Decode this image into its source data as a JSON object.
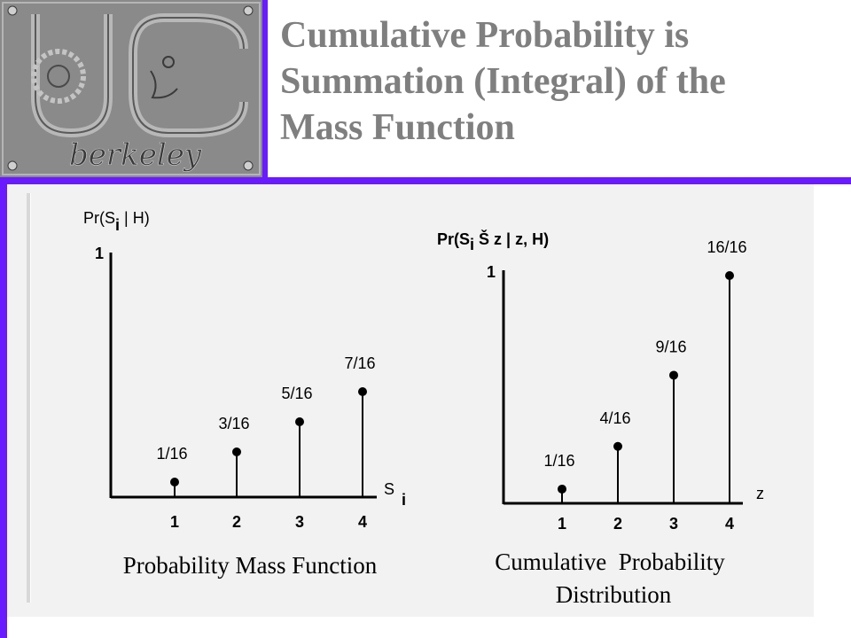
{
  "slide": {
    "title_line1": "Cumulative Probability is",
    "title_line2": "Summation (Integral) of the",
    "title_line3": "Mass Function",
    "accent_color": "#6a1aff"
  },
  "logo": {
    "text": "berkeley",
    "icon": "uc-berkeley-logo"
  },
  "chart_data": [
    {
      "type": "bar",
      "style": "stem",
      "ylabel_main": "Pr(S",
      "ylabel_sub": "i",
      "ylabel_rest": " | H)",
      "y_max_label": "1",
      "xlabel_main": "S",
      "xlabel_sub": "i",
      "categories": [
        "1",
        "2",
        "3",
        "4"
      ],
      "values": [
        0.0625,
        0.1875,
        0.3125,
        0.4375
      ],
      "value_labels": [
        "1/16",
        "3/16",
        "5/16",
        "7/16"
      ],
      "ylim": [
        0,
        1
      ],
      "caption": "Probability Mass Function"
    },
    {
      "type": "bar",
      "style": "stem",
      "ylabel_main": "Pr(S",
      "ylabel_sub": "i",
      "ylabel_rest": " Š z | z, H)",
      "y_max_label": "1",
      "xlabel_main": "z",
      "categories": [
        "1",
        "2",
        "3",
        "4"
      ],
      "values": [
        0.0625,
        0.25,
        0.5625,
        1.0
      ],
      "value_labels": [
        "1/16",
        "4/16",
        "9/16",
        "16/16"
      ],
      "ylim": [
        0,
        1
      ],
      "caption_line1": "Cumulative  Probability",
      "caption_line2": "Distribution"
    }
  ]
}
